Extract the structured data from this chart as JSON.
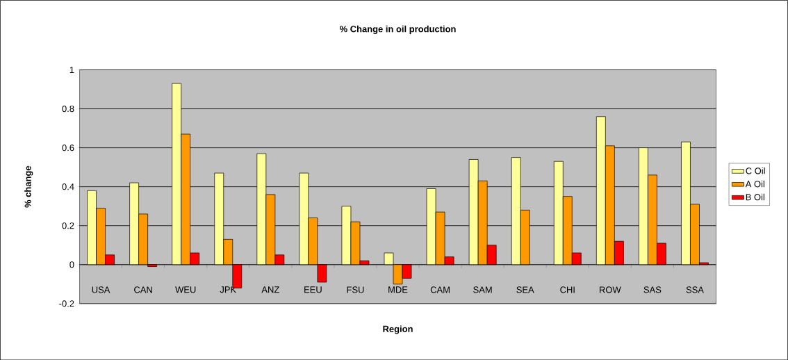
{
  "chart_data": {
    "type": "bar",
    "title": "% Change in oil production",
    "xlabel": "Region",
    "ylabel": "% change",
    "categories": [
      "USA",
      "CAN",
      "WEU",
      "JPK",
      "ANZ",
      "EEU",
      "FSU",
      "MDE",
      "CAM",
      "SAM",
      "SEA",
      "CHI",
      "ROW",
      "SAS",
      "SSA"
    ],
    "series": [
      {
        "name": "C Oil",
        "color": "#ffff99",
        "values": [
          0.38,
          0.42,
          0.93,
          0.47,
          0.57,
          0.47,
          0.3,
          0.06,
          0.39,
          0.54,
          0.55,
          0.53,
          0.76,
          0.6,
          0.63
        ]
      },
      {
        "name": "A Oil",
        "color": "#ff9900",
        "values": [
          0.29,
          0.26,
          0.67,
          0.13,
          0.36,
          0.24,
          0.22,
          -0.1,
          0.27,
          0.43,
          0.28,
          0.35,
          0.61,
          0.46,
          0.31
        ]
      },
      {
        "name": "B Oil",
        "color": "#ff0000",
        "values": [
          0.05,
          -0.01,
          0.06,
          -0.12,
          0.05,
          -0.09,
          0.02,
          -0.07,
          0.04,
          0.1,
          null,
          0.06,
          0.12,
          0.11,
          0.01
        ]
      }
    ],
    "ylim": [
      -0.2,
      1
    ],
    "yticks": [
      -0.2,
      0,
      0.2,
      0.4,
      0.6,
      0.8,
      1
    ],
    "grid": "y",
    "legend": "right"
  }
}
